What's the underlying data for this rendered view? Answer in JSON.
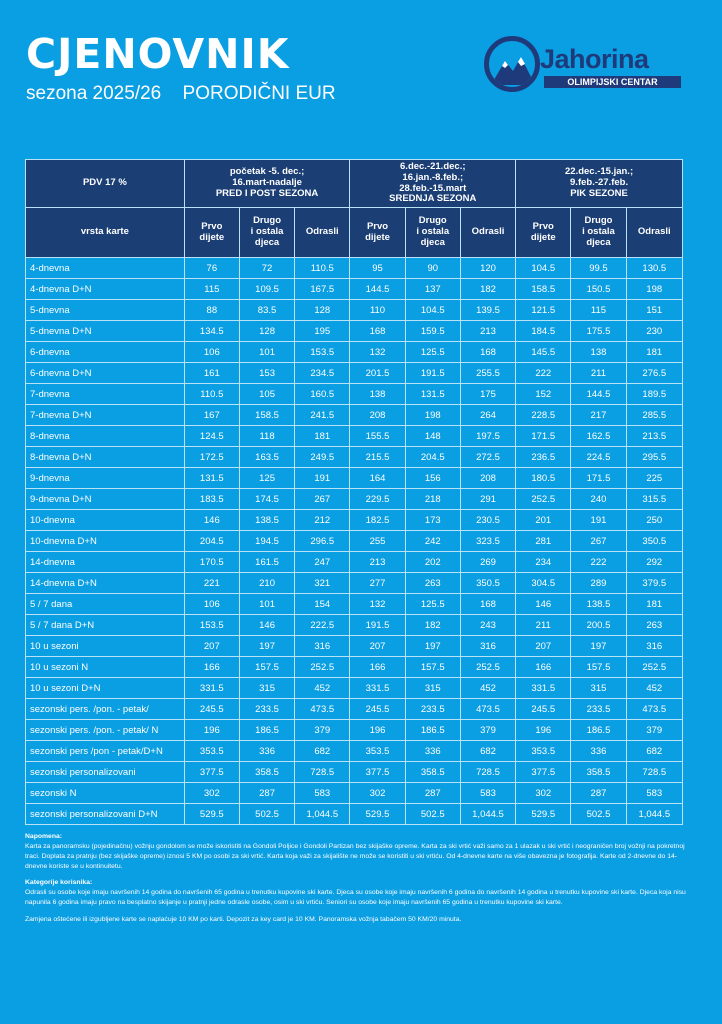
{
  "header": {
    "title": "CJENOVNIK",
    "season": "sezona 2025/26",
    "subtitle": "PORODIČNI EUR"
  },
  "logo": {
    "name": "Jahorina",
    "sub": "OLIMPIJSKI CENTAR",
    "colors": {
      "navy": "#1e3a7a",
      "background": "#0a9ee3"
    }
  },
  "table": {
    "pdv_label": "PDV 17 %",
    "type_label": "vrsta karte",
    "periods": [
      {
        "l1": "početak -5. dec.;",
        "l2": "16.mart-nadalje",
        "l3": "PRED I POST SEZONA"
      },
      {
        "l1": "6.dec.-21.dec.;",
        "l2": "16.jan.-8.feb.;",
        "l3": "28.feb.-15.mart",
        "l4": "SREDNJA SEZONA"
      },
      {
        "l1": "22.dec.-15.jan.;",
        "l2": "9.feb.-27.feb.",
        "l3": "PIK SEZONE"
      }
    ],
    "columns": {
      "c1": "Prvo dijete",
      "c2a": "Drugo",
      "c2b": "i ostala",
      "c2c": "djeca",
      "c3": "Odrasli"
    },
    "rows": [
      {
        "name": "4-dnevna",
        "v": [
          "76",
          "72",
          "110.5",
          "95",
          "90",
          "120",
          "104.5",
          "99.5",
          "130.5"
        ]
      },
      {
        "name": "4-dnevna D+N",
        "v": [
          "115",
          "109.5",
          "167.5",
          "144.5",
          "137",
          "182",
          "158.5",
          "150.5",
          "198"
        ]
      },
      {
        "name": "5-dnevna",
        "v": [
          "88",
          "83.5",
          "128",
          "110",
          "104.5",
          "139.5",
          "121.5",
          "115",
          "151"
        ]
      },
      {
        "name": "5-dnevna D+N",
        "v": [
          "134.5",
          "128",
          "195",
          "168",
          "159.5",
          "213",
          "184.5",
          "175.5",
          "230"
        ]
      },
      {
        "name": "6-dnevna",
        "v": [
          "106",
          "101",
          "153.5",
          "132",
          "125.5",
          "168",
          "145.5",
          "138",
          "181"
        ]
      },
      {
        "name": "6-dnevna D+N",
        "v": [
          "161",
          "153",
          "234.5",
          "201.5",
          "191.5",
          "255.5",
          "222",
          "211",
          "276.5"
        ]
      },
      {
        "name": "7-dnevna",
        "v": [
          "110.5",
          "105",
          "160.5",
          "138",
          "131.5",
          "175",
          "152",
          "144.5",
          "189.5"
        ]
      },
      {
        "name": "7-dnevna D+N",
        "v": [
          "167",
          "158.5",
          "241.5",
          "208",
          "198",
          "264",
          "228.5",
          "217",
          "285.5"
        ]
      },
      {
        "name": "8-dnevna",
        "v": [
          "124.5",
          "118",
          "181",
          "155.5",
          "148",
          "197.5",
          "171.5",
          "162.5",
          "213.5"
        ]
      },
      {
        "name": "8-dnevna D+N",
        "v": [
          "172.5",
          "163.5",
          "249.5",
          "215.5",
          "204.5",
          "272.5",
          "236.5",
          "224.5",
          "295.5"
        ]
      },
      {
        "name": "9-dnevna",
        "v": [
          "131.5",
          "125",
          "191",
          "164",
          "156",
          "208",
          "180.5",
          "171.5",
          "225"
        ]
      },
      {
        "name": "9-dnevna D+N",
        "v": [
          "183.5",
          "174.5",
          "267",
          "229.5",
          "218",
          "291",
          "252.5",
          "240",
          "315.5"
        ]
      },
      {
        "name": "10-dnevna",
        "v": [
          "146",
          "138.5",
          "212",
          "182.5",
          "173",
          "230.5",
          "201",
          "191",
          "250"
        ]
      },
      {
        "name": "10-dnevna D+N",
        "v": [
          "204.5",
          "194.5",
          "296.5",
          "255",
          "242",
          "323.5",
          "281",
          "267",
          "350.5"
        ]
      },
      {
        "name": "14-dnevna",
        "v": [
          "170.5",
          "161.5",
          "247",
          "213",
          "202",
          "269",
          "234",
          "222",
          "292"
        ]
      },
      {
        "name": "14-dnevna D+N",
        "v": [
          "221",
          "210",
          "321",
          "277",
          "263",
          "350.5",
          "304.5",
          "289",
          "379.5"
        ]
      },
      {
        "name": "5 / 7 dana",
        "v": [
          "106",
          "101",
          "154",
          "132",
          "125.5",
          "168",
          "146",
          "138.5",
          "181"
        ]
      },
      {
        "name": "5 / 7 dana D+N",
        "v": [
          "153.5",
          "146",
          "222.5",
          "191.5",
          "182",
          "243",
          "211",
          "200.5",
          "263"
        ]
      },
      {
        "name": "10 u sezoni",
        "v": [
          "207",
          "197",
          "316",
          "207",
          "197",
          "316",
          "207",
          "197",
          "316"
        ]
      },
      {
        "name": "10 u sezoni N",
        "v": [
          "166",
          "157.5",
          "252.5",
          "166",
          "157.5",
          "252.5",
          "166",
          "157.5",
          "252.5"
        ]
      },
      {
        "name": "10 u sezoni D+N",
        "v": [
          "331.5",
          "315",
          "452",
          "331.5",
          "315",
          "452",
          "331.5",
          "315",
          "452"
        ]
      },
      {
        "name": "sezonski pers. /pon. - petak/",
        "v": [
          "245.5",
          "233.5",
          "473.5",
          "245.5",
          "233.5",
          "473.5",
          "245.5",
          "233.5",
          "473.5"
        ]
      },
      {
        "name": "sezonski pers. /pon. - petak/ N",
        "v": [
          "196",
          "186.5",
          "379",
          "196",
          "186.5",
          "379",
          "196",
          "186.5",
          "379"
        ]
      },
      {
        "name": "sezonski pers /pon - petak/D+N",
        "v": [
          "353.5",
          "336",
          "682",
          "353.5",
          "336",
          "682",
          "353.5",
          "336",
          "682"
        ]
      },
      {
        "name": "sezonski personalizovani",
        "v": [
          "377.5",
          "358.5",
          "728.5",
          "377.5",
          "358.5",
          "728.5",
          "377.5",
          "358.5",
          "728.5"
        ]
      },
      {
        "name": "sezonski N",
        "v": [
          "302",
          "287",
          "583",
          "302",
          "287",
          "583",
          "302",
          "287",
          "583"
        ]
      },
      {
        "name": "sezonski personalizovani D+N",
        "v": [
          "529.5",
          "502.5",
          "1,044.5",
          "529.5",
          "502.5",
          "1,044.5",
          "529.5",
          "502.5",
          "1,044.5"
        ]
      }
    ]
  },
  "notes": {
    "napomena_title": "Napomena:",
    "napomena_text": "Karta za panoramsku (pojedinačnu) vožnju gondolom se može iskoristiti na Gondoli Poljice i Gondoli Partizan bez skijaške opreme. Karta za ski vrtić važi samo za 1 ulazak u ski vrtić i neograničen broj vožnji na pokretnoj traci. Doplata za pratnju (bez skijaške opreme) iznosi 5 KM po osobi za ski vrtić. Karta koja važi za skijalište ne može se koristiti u ski vrtiću. Od 4-dnevne karte na više obavezna je fotografija. Karte od 2-dnevne do 14-dnevne koriste se u kontinuitetu.",
    "kategorije_title": "Kategorije korisnika:",
    "kategorije_text": "Odrasli su osobe koje imaju navršenih 14 godina do navršenih 65 godina u trenutku kupovine ski karte. Djeca su osobe koje imaju navršenih 6 godina do navršenih 14 godina u trenutku kupovine ski karte. Djeca koja nisu napunila 6 godina imaju pravo na besplatno skijanje u pratnji jedne odrasle osobe, osim u ski vrtiću. Seniori su osobe koje imaju navršenih 65 godina u trenutku kupovine ski karte.",
    "zamjena_text": "Zamjena oštećene ili izgubljene karte se naplaćuje 10 KM po karti. Depozit za key card je 10 KM. Panoramska vožnja tabačem 50 KM/20 minuta."
  }
}
